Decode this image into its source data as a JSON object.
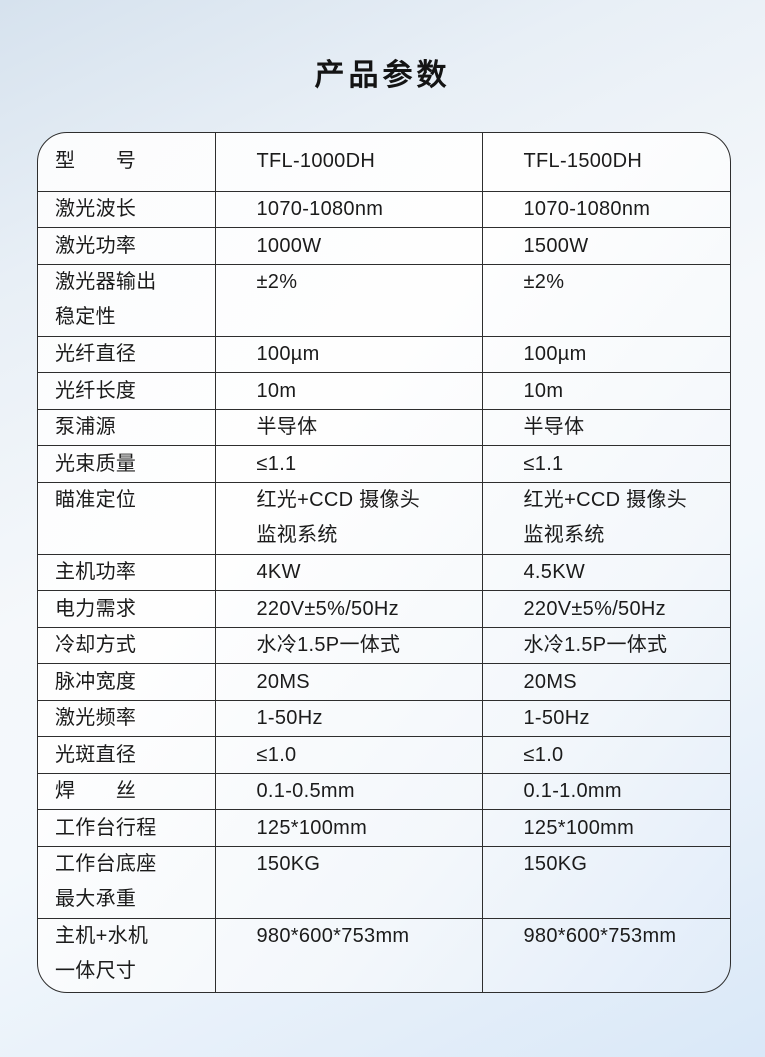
{
  "page": {
    "title": "产品参数"
  },
  "table": {
    "header": {
      "label": "型　　号",
      "model1": "TFL-1000DH",
      "model2": "TFL-1500DH"
    },
    "rows": [
      {
        "label": "激光波长",
        "tfl1000": "1070-1080nm",
        "tfl1500": "1070-1080nm"
      },
      {
        "label": "激光功率",
        "tfl1000": "1000W",
        "tfl1500": "1500W"
      },
      {
        "label": "激光器输出\n稳定性",
        "tfl1000": "±2%",
        "tfl1500": "±2%"
      },
      {
        "label": "光纤直径",
        "tfl1000": "100µm",
        "tfl1500": "100µm"
      },
      {
        "label": "光纤长度",
        "tfl1000": "10m",
        "tfl1500": "10m"
      },
      {
        "label": "泵浦源",
        "tfl1000": "半导体",
        "tfl1500": "半导体"
      },
      {
        "label": "光束质量",
        "tfl1000": "≤1.1",
        "tfl1500": "≤1.1"
      },
      {
        "label": "瞄准定位",
        "tfl1000": "红光+CCD 摄像头\n监视系统",
        "tfl1500": "红光+CCD 摄像头\n监视系统"
      },
      {
        "label": "主机功率",
        "tfl1000": "4KW",
        "tfl1500": "4.5KW"
      },
      {
        "label": "电力需求",
        "tfl1000": "220V±5%/50Hz",
        "tfl1500": "220V±5%/50Hz"
      },
      {
        "label": "冷却方式",
        "tfl1000": "水冷1.5P一体式",
        "tfl1500": "水冷1.5P一体式"
      },
      {
        "label": "脉冲宽度",
        "tfl1000": "20MS",
        "tfl1500": "20MS"
      },
      {
        "label": "激光频率",
        "tfl1000": "1-50Hz",
        "tfl1500": "1-50Hz"
      },
      {
        "label": "光斑直径",
        "tfl1000": "≤1.0",
        "tfl1500": "≤1.0"
      },
      {
        "label": "焊　　丝",
        "tfl1000": "0.1-0.5mm",
        "tfl1500": "0.1-1.0mm"
      },
      {
        "label": "工作台行程",
        "tfl1000": "125*100mm",
        "tfl1500": "125*100mm"
      },
      {
        "label": "工作台底座\n最大承重",
        "tfl1000": "150KG",
        "tfl1500": "150KG"
      },
      {
        "label": "主机+水机\n一体尺寸",
        "tfl1000": "980*600*753mm",
        "tfl1500": "980*600*753mm"
      }
    ]
  }
}
